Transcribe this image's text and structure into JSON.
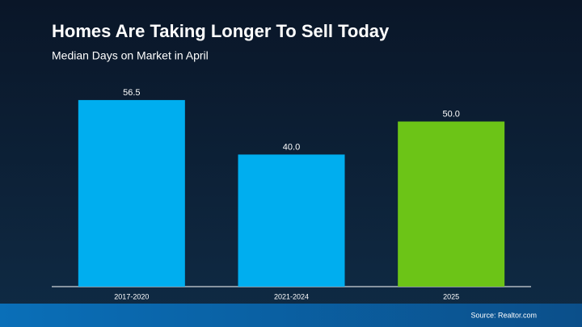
{
  "chart_data": {
    "type": "bar",
    "title": "Homes Are Taking Longer To Sell Today",
    "subtitle": "Median Days on Market in April",
    "categories": [
      "2017-2020",
      "2021-2024",
      "2025"
    ],
    "values": [
      56.5,
      40.0,
      50.0
    ],
    "value_labels": [
      "56.5",
      "40.0",
      "50.0"
    ],
    "colors": [
      "#00aeef",
      "#00aeef",
      "#6cc417"
    ],
    "source": "Source: Realtor.com"
  }
}
